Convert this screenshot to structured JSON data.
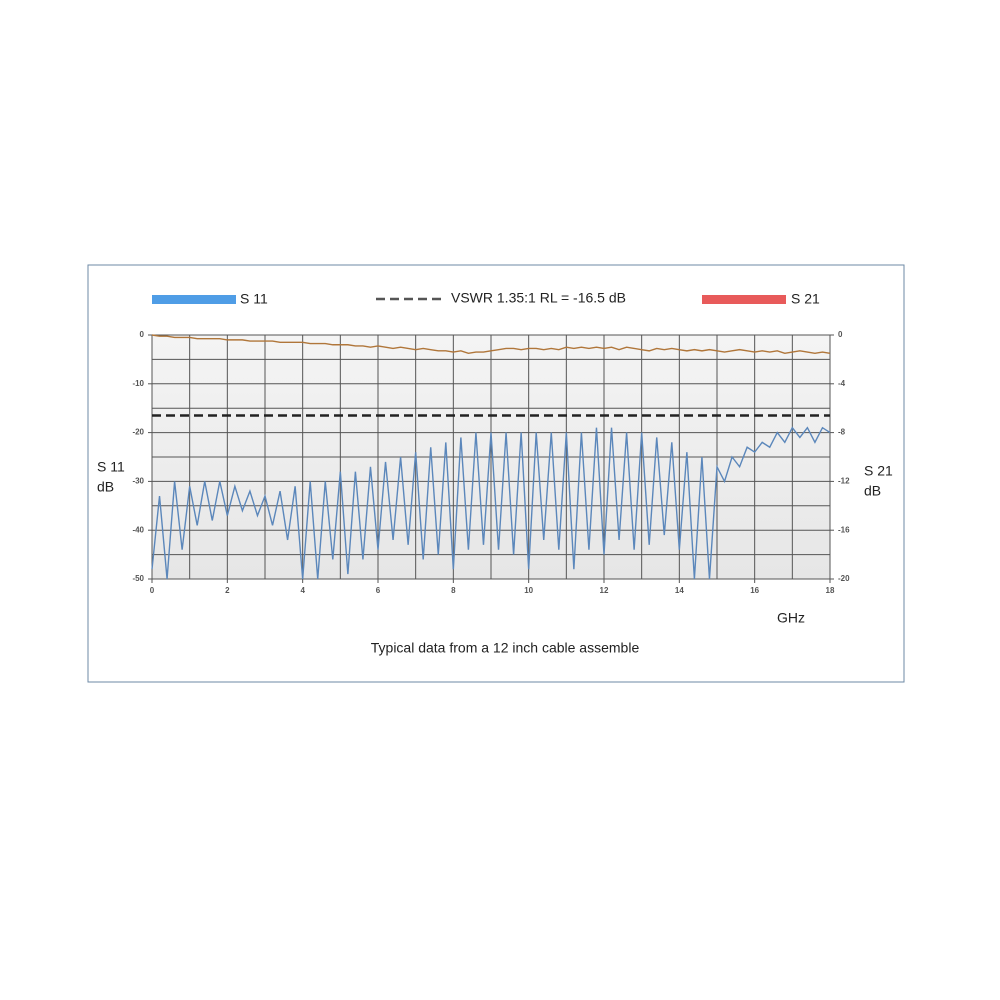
{
  "chart_data": {
    "type": "line",
    "caption": "Typical data from a 12 inch cable assemble",
    "xlabel": "GHz",
    "ylabel": [
      "S 11",
      "dB"
    ],
    "y2label": [
      "S 21",
      "dB"
    ],
    "xlim": [
      0,
      18
    ],
    "xticks": [
      0,
      2,
      4,
      6,
      8,
      10,
      12,
      14,
      16,
      18
    ],
    "x_grid_step": 1,
    "ylim": [
      -50,
      0
    ],
    "yticks": [
      0,
      -10,
      -20,
      -30,
      -40,
      -50
    ],
    "y_grid_step": 5,
    "y2lim": [
      -20,
      0
    ],
    "y2ticks": [
      0,
      -4,
      -8,
      -12,
      -16,
      -20
    ],
    "grid": true,
    "reference_lines": [
      {
        "value": -16.5,
        "label": "VSWR 1.35:1 RL = -16.5 dB",
        "color": "#222222"
      }
    ],
    "x": [
      0,
      0.2,
      0.4,
      0.6,
      0.8,
      1.0,
      1.2,
      1.4,
      1.6,
      1.8,
      2.0,
      2.2,
      2.4,
      2.6,
      2.8,
      3.0,
      3.2,
      3.4,
      3.6,
      3.8,
      4.0,
      4.2,
      4.4,
      4.6,
      4.8,
      5.0,
      5.2,
      5.4,
      5.6,
      5.8,
      6.0,
      6.2,
      6.4,
      6.6,
      6.8,
      7.0,
      7.2,
      7.4,
      7.6,
      7.8,
      8.0,
      8.2,
      8.4,
      8.6,
      8.8,
      9.0,
      9.2,
      9.4,
      9.6,
      9.8,
      10.0,
      10.2,
      10.4,
      10.6,
      10.8,
      11.0,
      11.2,
      11.4,
      11.6,
      11.8,
      12.0,
      12.2,
      12.4,
      12.6,
      12.8,
      13.0,
      13.2,
      13.4,
      13.6,
      13.8,
      14.0,
      14.2,
      14.4,
      14.6,
      14.8,
      15.0,
      15.2,
      15.4,
      15.6,
      15.8,
      16.0,
      16.2,
      16.4,
      16.6,
      16.8,
      17.0,
      17.2,
      17.4,
      17.6,
      17.8,
      18.0
    ],
    "series": [
      {
        "name": "S 11",
        "color": "#4f9de6",
        "line_color": "#5b87bb",
        "axis": "y",
        "values": [
          -48,
          -33,
          -50,
          -30,
          -44,
          -31,
          -39,
          -30,
          -38,
          -30,
          -37,
          -31,
          -36,
          -32,
          -37,
          -33,
          -39,
          -32,
          -42,
          -31,
          -50,
          -30,
          -50,
          -30,
          -46,
          -28,
          -49,
          -28,
          -46,
          -27,
          -44,
          -26,
          -42,
          -25,
          -43,
          -24,
          -46,
          -23,
          -45,
          -22,
          -48,
          -21,
          -44,
          -20,
          -43,
          -20,
          -44,
          -20,
          -45,
          -20,
          -48,
          -20,
          -42,
          -20,
          -44,
          -20,
          -48,
          -20,
          -44,
          -19,
          -45,
          -19,
          -42,
          -20,
          -44,
          -20,
          -43,
          -21,
          -41,
          -22,
          -44,
          -24,
          -50,
          -25,
          -50,
          -27,
          -30,
          -25,
          -27,
          -23,
          -24,
          -22,
          -23,
          -20,
          -22,
          -19,
          -21,
          -19,
          -22,
          -19,
          -20
        ]
      },
      {
        "name": "S 21",
        "color": "#e85a5a",
        "line_color": "#b0763a",
        "axis": "y2",
        "values": [
          0,
          -0.1,
          -0.1,
          -0.2,
          -0.2,
          -0.2,
          -0.3,
          -0.3,
          -0.3,
          -0.3,
          -0.4,
          -0.4,
          -0.4,
          -0.5,
          -0.5,
          -0.5,
          -0.5,
          -0.6,
          -0.6,
          -0.6,
          -0.6,
          -0.7,
          -0.7,
          -0.7,
          -0.8,
          -0.8,
          -0.8,
          -0.9,
          -0.9,
          -1.0,
          -0.9,
          -1.0,
          -1.1,
          -1.0,
          -1.1,
          -1.2,
          -1.1,
          -1.2,
          -1.3,
          -1.3,
          -1.4,
          -1.3,
          -1.5,
          -1.4,
          -1.4,
          -1.3,
          -1.2,
          -1.1,
          -1.1,
          -1.2,
          -1.1,
          -1.1,
          -1.2,
          -1.1,
          -1.2,
          -1.0,
          -1.1,
          -1.0,
          -1.1,
          -1.0,
          -1.1,
          -1.0,
          -1.2,
          -1.0,
          -1.1,
          -1.2,
          -1.3,
          -1.1,
          -1.2,
          -1.1,
          -1.2,
          -1.3,
          -1.2,
          -1.3,
          -1.2,
          -1.3,
          -1.4,
          -1.3,
          -1.2,
          -1.3,
          -1.4,
          -1.3,
          -1.4,
          -1.3,
          -1.5,
          -1.4,
          -1.3,
          -1.4,
          -1.5,
          -1.4,
          -1.5
        ]
      }
    ]
  }
}
